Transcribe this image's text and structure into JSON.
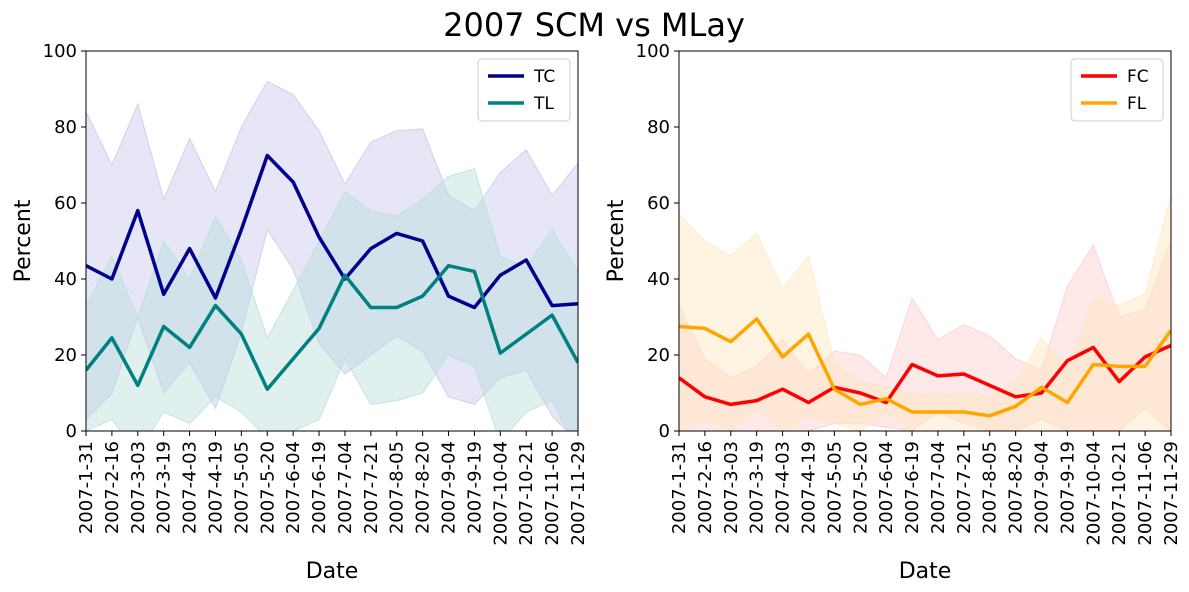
{
  "title": "2007 SCM vs MLay",
  "chart_data": [
    {
      "type": "line",
      "xlabel": "Date",
      "ylabel": "Percent",
      "ylim": [
        0,
        100
      ],
      "yticks": [
        "0",
        "20",
        "40",
        "60",
        "80",
        "100"
      ],
      "grid": false,
      "legend_position": "top-right",
      "categories": [
        "2007-1-31",
        "2007-2-16",
        "2007-3-03",
        "2007-3-19",
        "2007-4-03",
        "2007-4-19",
        "2007-5-05",
        "2007-5-20",
        "2007-6-04",
        "2007-6-19",
        "2007-7-04",
        "2007-7-21",
        "2007-8-05",
        "2007-8-20",
        "2007-9-04",
        "2007-9-19",
        "2007-10-04",
        "2007-10-21",
        "2007-11-06",
        "2007-11-29"
      ],
      "series": [
        {
          "name": "TC",
          "color": "#00008b",
          "band_color": "#c8c8ec",
          "values": [
            43.5,
            40,
            58,
            36,
            48,
            35,
            53,
            72.5,
            65.5,
            51,
            40,
            48,
            52,
            50,
            35.5,
            32.5,
            41,
            45,
            33,
            33.5
          ],
          "upper": [
            84,
            70,
            86,
            61,
            77,
            63,
            80,
            92,
            88.5,
            79,
            65,
            76,
            79,
            79.5,
            62,
            58,
            68,
            74,
            62,
            70.5
          ],
          "lower": [
            3,
            10,
            30,
            10,
            18,
            6,
            26,
            53,
            42.5,
            23,
            15,
            20,
            25,
            21,
            9,
            7,
            14,
            16,
            4,
            -3
          ]
        },
        {
          "name": "TL",
          "color": "#008080",
          "band_color": "#b9dedc",
          "values": [
            16,
            24.5,
            12,
            27.5,
            22,
            33,
            25.5,
            11,
            19,
            27,
            41,
            32.5,
            32.5,
            35.5,
            43.5,
            42,
            20.5,
            25.5,
            30.5,
            18
          ],
          "upper": [
            33,
            46,
            30,
            50,
            40,
            56.5,
            45,
            24.5,
            37,
            50,
            63,
            58,
            56.5,
            61,
            67,
            69,
            46,
            43,
            53,
            42
          ],
          "lower": [
            0,
            3,
            -6,
            5,
            2,
            9,
            5,
            -2,
            0,
            3,
            19,
            7,
            8,
            10,
            20,
            17,
            -3,
            5,
            8,
            -6
          ]
        }
      ]
    },
    {
      "type": "line",
      "xlabel": "Date",
      "ylabel": "Percent",
      "ylim": [
        0,
        100
      ],
      "yticks": [
        "0",
        "20",
        "40",
        "60",
        "80",
        "100"
      ],
      "grid": false,
      "legend_position": "top-right",
      "categories": [
        "2007-1-31",
        "2007-2-16",
        "2007-3-03",
        "2007-3-19",
        "2007-4-03",
        "2007-4-19",
        "2007-5-05",
        "2007-5-20",
        "2007-6-04",
        "2007-6-19",
        "2007-7-04",
        "2007-7-21",
        "2007-8-05",
        "2007-8-20",
        "2007-9-04",
        "2007-9-19",
        "2007-10-04",
        "2007-10-21",
        "2007-11-06",
        "2007-11-29"
      ],
      "series": [
        {
          "name": "FC",
          "color": "#ff0000",
          "band_color": "#ffcccc",
          "values": [
            14,
            9,
            7,
            8,
            11,
            7.5,
            11.5,
            10,
            7.5,
            17.5,
            14.5,
            15,
            12,
            9,
            10,
            18.5,
            22,
            13,
            19.5,
            22.5
          ],
          "upper": [
            33,
            19,
            14,
            17,
            24,
            15,
            21,
            20,
            14,
            35,
            24,
            28,
            25,
            19,
            16,
            38,
            49,
            30,
            32,
            50
          ],
          "lower": [
            0,
            0,
            0,
            0,
            0,
            0,
            2,
            2,
            1,
            0,
            5,
            2,
            0,
            0,
            3,
            0,
            0,
            0,
            6,
            0
          ]
        },
        {
          "name": "FL",
          "color": "#ffa500",
          "band_color": "#ffe7bf",
          "values": [
            27.5,
            27,
            23.5,
            29.5,
            19.5,
            25.5,
            11,
            7,
            8.5,
            5,
            5,
            5,
            4,
            6.5,
            11.5,
            7.5,
            17.5,
            17,
            17,
            26.5
          ],
          "upper": [
            57,
            50,
            46,
            52,
            37.5,
            46,
            18,
            13,
            11.5,
            10,
            9.5,
            10,
            9,
            13,
            24.5,
            16,
            35,
            33,
            36,
            62
          ],
          "lower": [
            0,
            3,
            0,
            6,
            0,
            4,
            2,
            0,
            5,
            0,
            0,
            0,
            0,
            0,
            0,
            0,
            0,
            0,
            0,
            0
          ]
        }
      ]
    }
  ]
}
